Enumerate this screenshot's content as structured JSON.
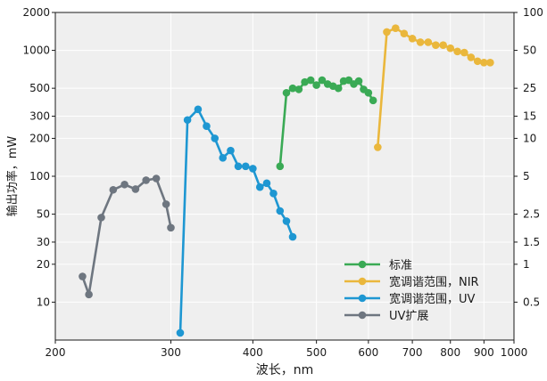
{
  "chart_data": {
    "type": "line",
    "xlabel": "波长，nm",
    "ylabel": "输出功率，mW",
    "x_scale": "log",
    "y_scale": "log",
    "xlim": [
      200,
      1000
    ],
    "ylim": [
      5,
      2000
    ],
    "y2lim": [
      0.25,
      100
    ],
    "grid": true,
    "legend_position": "bottom-right",
    "x_ticks": [
      "200",
      "300",
      "400",
      "500",
      "600",
      "700",
      "800",
      "900",
      "1000"
    ],
    "y_ticks": [
      "10",
      "20",
      "30",
      "50",
      "100",
      "200",
      "300",
      "500",
      "1000",
      "2000"
    ],
    "y2_ticks": [
      "0.5",
      "1",
      "1.5",
      "2.5",
      "5",
      "10",
      "15",
      "25",
      "50",
      "100"
    ],
    "colors": {
      "标准": "#3aaa55",
      "宽调谐范围，NIR": "#eab73c",
      "宽调谐范围，UV": "#1e97d2",
      "UV扩展": "#6e7680"
    },
    "series": [
      {
        "name": "UV扩展",
        "axis": "left",
        "points": [
          [
            220,
            16
          ],
          [
            225,
            11.5
          ],
          [
            235,
            47
          ],
          [
            245,
            78
          ],
          [
            255,
            86
          ],
          [
            265,
            79
          ],
          [
            275,
            93
          ],
          [
            285,
            96
          ],
          [
            295,
            60
          ],
          [
            300,
            39
          ]
        ]
      },
      {
        "name": "宽调谐范围，UV",
        "axis": "left",
        "points": [
          [
            310,
            5.7
          ],
          [
            318,
            280
          ],
          [
            330,
            340
          ],
          [
            340,
            250
          ],
          [
            350,
            200
          ],
          [
            360,
            140
          ],
          [
            370,
            160
          ],
          [
            380,
            120
          ],
          [
            390,
            120
          ],
          [
            400,
            115
          ],
          [
            410,
            82
          ],
          [
            420,
            88
          ],
          [
            430,
            73
          ],
          [
            440,
            53
          ],
          [
            450,
            44
          ],
          [
            460,
            33
          ]
        ]
      },
      {
        "name": "标准",
        "axis": "right",
        "points": [
          [
            440,
            6
          ],
          [
            450,
            23
          ],
          [
            460,
            25
          ],
          [
            470,
            24.5
          ],
          [
            480,
            28
          ],
          [
            490,
            29
          ],
          [
            500,
            26.5
          ],
          [
            510,
            29
          ],
          [
            520,
            27
          ],
          [
            530,
            26
          ],
          [
            540,
            25
          ],
          [
            550,
            28.5
          ],
          [
            560,
            29
          ],
          [
            570,
            27
          ],
          [
            580,
            28.5
          ],
          [
            590,
            24.5
          ],
          [
            600,
            23
          ],
          [
            610,
            20
          ]
        ]
      },
      {
        "name": "宽调谐范围，NIR",
        "axis": "right",
        "points": [
          [
            620,
            8.5
          ],
          [
            640,
            70
          ],
          [
            660,
            75
          ],
          [
            680,
            68
          ],
          [
            700,
            62
          ],
          [
            720,
            58
          ],
          [
            740,
            58
          ],
          [
            760,
            55
          ],
          [
            780,
            55
          ],
          [
            800,
            52
          ],
          [
            820,
            49
          ],
          [
            840,
            48
          ],
          [
            860,
            44
          ],
          [
            880,
            41
          ],
          [
            900,
            40
          ],
          [
            920,
            40
          ]
        ]
      }
    ],
    "legend_order": [
      "标准",
      "宽调谐范围，NIR",
      "宽调谐范围，UV",
      "UV扩展"
    ]
  }
}
